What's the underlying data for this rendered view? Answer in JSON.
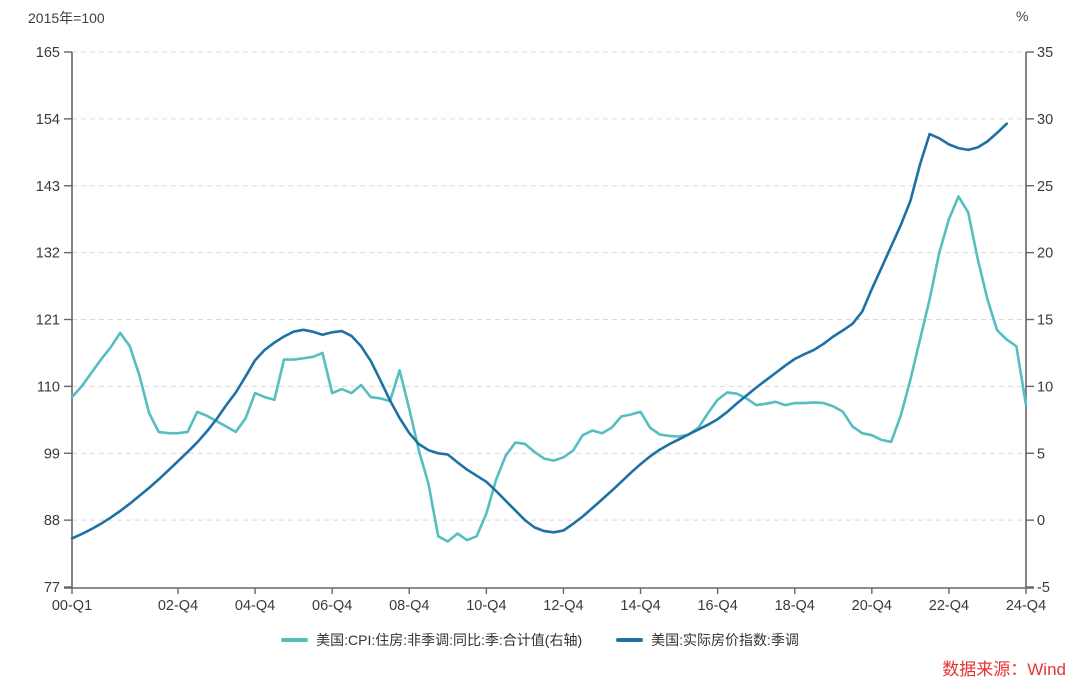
{
  "header": {
    "left_axis_unit": "2015年=100",
    "right_axis_unit": "%"
  },
  "footer": {
    "source": "数据来源：Wind",
    "source_color": "#e63333"
  },
  "chart_data": {
    "type": "line",
    "frequency": "quarterly",
    "x_start": "2000-Q1",
    "x_end": "2024-Q4",
    "x_tick_labels": [
      "00-Q1",
      "02-Q4",
      "04-Q4",
      "06-Q4",
      "08-Q4",
      "10-Q4",
      "12-Q4",
      "14-Q4",
      "16-Q4",
      "18-Q4",
      "20-Q4",
      "22-Q4",
      "24-Q4"
    ],
    "x_tick_positions": [
      0,
      11,
      19,
      27,
      35,
      43,
      51,
      59,
      67,
      75,
      83,
      91,
      99
    ],
    "left_axis": {
      "min": 77,
      "max": 165,
      "ticks": [
        165,
        154,
        143,
        132,
        121,
        110,
        99,
        88,
        77
      ],
      "unit": "2015年=100"
    },
    "right_axis": {
      "min": -5,
      "max": 35,
      "ticks": [
        35,
        30,
        25,
        20,
        15,
        10,
        5,
        0,
        -5
      ],
      "unit": "%"
    },
    "grid": "horizontal-dashed",
    "legend_position": "bottom-center",
    "colors": {
      "grid": "#d9d9d9",
      "axis": "#666666",
      "tick_text": "#3a3a3a"
    },
    "series": [
      {
        "name": "美国:CPI:住房:非季调:同比:季:合计值(右轴)",
        "axis": "right",
        "color": "#56bec0",
        "values": [
          9.2,
          10.0,
          11.0,
          12.0,
          12.9,
          14.0,
          13.0,
          10.8,
          8.0,
          6.6,
          6.5,
          6.5,
          6.6,
          8.1,
          7.8,
          7.4,
          7.0,
          6.6,
          7.6,
          9.5,
          9.2,
          9.0,
          12.0,
          12.0,
          12.1,
          12.2,
          12.5,
          9.5,
          9.8,
          9.5,
          10.1,
          9.2,
          9.1,
          8.9,
          11.2,
          8.3,
          5.2,
          2.7,
          -1.2,
          -1.6,
          -1.0,
          -1.5,
          -1.2,
          0.5,
          3.0,
          4.8,
          5.8,
          5.7,
          5.1,
          4.6,
          4.45,
          4.7,
          5.2,
          6.35,
          6.7,
          6.5,
          6.9,
          7.75,
          7.9,
          8.1,
          6.9,
          6.4,
          6.3,
          6.25,
          6.4,
          6.9,
          8.0,
          9.0,
          9.55,
          9.45,
          9.1,
          8.6,
          8.7,
          8.85,
          8.6,
          8.75,
          8.75,
          8.8,
          8.75,
          8.5,
          8.1,
          7.0,
          6.5,
          6.35,
          6.0,
          5.85,
          7.8,
          10.5,
          13.5,
          16.5,
          20.0,
          22.5,
          24.2,
          23.0,
          19.5,
          16.5,
          14.2,
          13.5,
          13.0,
          8.6
        ]
      },
      {
        "name": "美国:实际房价指数:季调",
        "axis": "left",
        "color": "#1e71a5",
        "values": [
          85.0,
          85.7,
          86.5,
          87.4,
          88.4,
          89.5,
          90.7,
          92.0,
          93.3,
          94.7,
          96.2,
          97.7,
          99.2,
          100.8,
          102.6,
          104.6,
          106.9,
          109.0,
          111.6,
          114.3,
          116.0,
          117.2,
          118.2,
          119.0,
          119.3,
          119.0,
          118.5,
          118.9,
          119.1,
          118.3,
          116.6,
          114.2,
          111.0,
          107.7,
          104.8,
          102.3,
          100.5,
          99.5,
          99.0,
          98.8,
          97.5,
          96.3,
          95.3,
          94.3,
          92.8,
          91.2,
          89.6,
          88.0,
          86.8,
          86.2,
          86.0,
          86.3,
          87.4,
          88.6,
          90.0,
          91.4,
          92.8,
          94.3,
          95.8,
          97.2,
          98.5,
          99.6,
          100.5,
          101.3,
          102.1,
          102.9,
          103.7,
          104.6,
          105.8,
          107.2,
          108.5,
          109.8,
          111.0,
          112.2,
          113.4,
          114.5,
          115.3,
          116.0,
          117.0,
          118.2,
          119.2,
          120.3,
          122.3,
          126.0,
          129.5,
          133.0,
          136.5,
          140.5,
          146.5,
          151.5,
          150.8,
          149.8,
          149.2,
          148.9,
          149.3,
          150.3,
          151.7,
          153.2,
          null,
          null
        ]
      }
    ]
  }
}
